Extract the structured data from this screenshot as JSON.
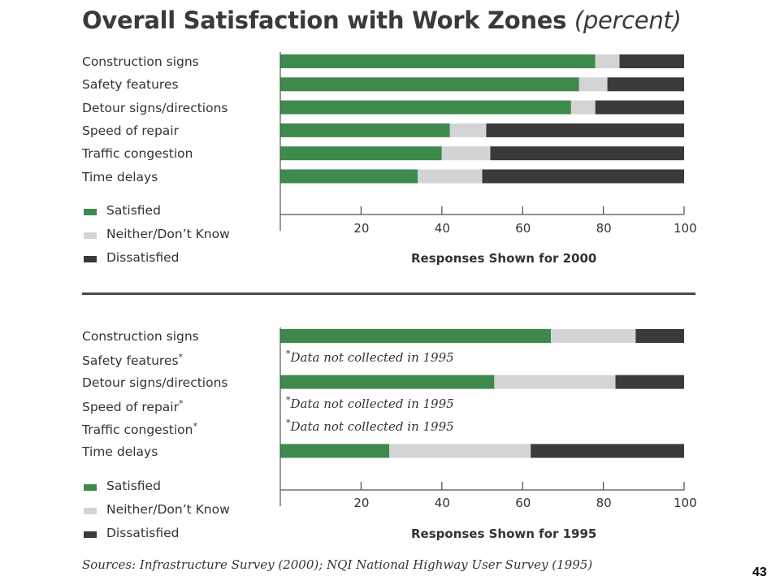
{
  "title": "Overall Satisfaction with Work Zones",
  "title_unit": "(percent)",
  "colors": {
    "satisfied": "#3e8a4c",
    "neither": "#d3d4d6",
    "dissatisfied": "#3a3a3a",
    "axis": "#555555"
  },
  "legend": [
    "Satisfied",
    "Neither/Don’t Know",
    "Dissatisfied"
  ],
  "source": "Sources:   Infrastructure Survey (2000); NQI National Highway User Survey (1995)",
  "page_number": "43",
  "chart_data": [
    {
      "type": "bar",
      "stacked": true,
      "orientation": "horizontal",
      "panel_title": "Responses Shown for 2000",
      "categories": [
        "Construction signs",
        "Safety features",
        "Detour signs/directions",
        "Speed of repair",
        "Traffic congestion",
        "Time delays"
      ],
      "series": [
        {
          "name": "Satisfied",
          "values": [
            78,
            74,
            72,
            42,
            40,
            34
          ]
        },
        {
          "name": "Neither/Don’t Know",
          "values": [
            6,
            7,
            6,
            9,
            12,
            16
          ]
        },
        {
          "name": "Dissatisfied",
          "values": [
            16,
            19,
            22,
            49,
            48,
            50
          ]
        }
      ],
      "notes": [
        "",
        "",
        "",
        "",
        "",
        ""
      ],
      "xticks": [
        20,
        40,
        60,
        80,
        100
      ],
      "xlim": [
        0,
        100
      ]
    },
    {
      "type": "bar",
      "stacked": true,
      "orientation": "horizontal",
      "panel_title": "Responses Shown for 1995",
      "categories": [
        "Construction signs",
        "Safety features*",
        "Detour signs/directions",
        "Speed of repair*",
        "Traffic congestion*",
        "Time delays"
      ],
      "series": [
        {
          "name": "Satisfied",
          "values": [
            67,
            null,
            53,
            null,
            null,
            27
          ]
        },
        {
          "name": "Neither/Don’t Know",
          "values": [
            21,
            null,
            30,
            null,
            null,
            35
          ]
        },
        {
          "name": "Dissatisfied",
          "values": [
            12,
            null,
            17,
            null,
            null,
            38
          ]
        }
      ],
      "notes": [
        "",
        "*Data not collected in 1995",
        "",
        "*Data not collected in 1995",
        "*Data not collected in 1995",
        ""
      ],
      "xticks": [
        20,
        40,
        60,
        80,
        100
      ],
      "xlim": [
        0,
        100
      ]
    }
  ]
}
